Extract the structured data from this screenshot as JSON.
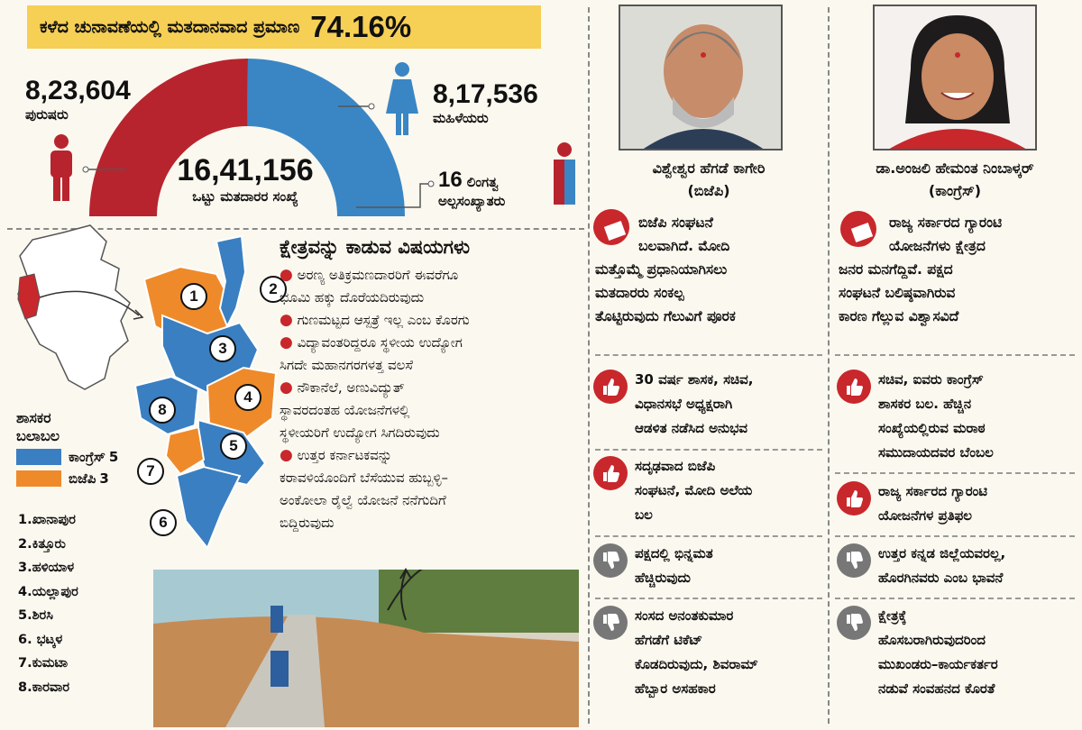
{
  "header": {
    "label": "ಕಳೆದ ಚುನಾವಣೆಯಲ್ಲಿ ಮತದಾನವಾದ ಪ್ರಮಾಣ",
    "percent": "74.16%"
  },
  "voters": {
    "male": {
      "value": "8,23,604",
      "label": "ಪುರುಷರು"
    },
    "female": {
      "value": "8,17,536",
      "label": "ಮಹಿಳೆಯರು"
    },
    "total": {
      "value": "16,41,156",
      "label": "ಒಟ್ಟು ಮತದಾರರ ಸಂಖ್ಯೆ"
    },
    "transgender": {
      "value": "16",
      "label_line1": "ಲಿಂಗತ್ವ",
      "label_line2": "ಅಲ್ಪಸಂಖ್ಯಾತರು"
    },
    "male_share": 0.5018
  },
  "colors": {
    "congress": "#3a7fc1",
    "bjp": "#ef8a2a",
    "male": "#b8242e",
    "female": "#3a86c5",
    "banner": "#f6cf55",
    "accent": "#c8272c"
  },
  "issues": {
    "title": "ಕ್ಷೇತ್ರವನ್ನು ಕಾಡುವ ವಿಷಯಗಳು",
    "items": [
      {
        "line1": "ಅರಣ್ಯ ಅತಿಕ್ರಮಣದಾರರಿಗೆ ಈವರೆಗೂ",
        "line2": "ಭೂಮಿ ಹಕ್ಕು ದೊರೆಯದಿರುವುದು"
      },
      {
        "line1": "ಗುಣಮಟ್ಟದ ಆಸ್ಪತ್ರೆ ಇಲ್ಲ ಎಂಬ ಕೊರಗು"
      },
      {
        "line1": "ವಿದ್ಯಾವಂತರಿದ್ದರೂ ಸ್ಥಳೀಯ ಉದ್ಯೋಗ",
        "line2": "ಸಿಗದೇ ಮಹಾನಗರಗಳತ್ತ ವಲಸೆ"
      },
      {
        "line1": "ನೌಕಾನೆಲೆ, ಅಣುವಿದ್ಯುತ್",
        "line2": "ಸ್ಥಾವರದಂತಹ ಯೋಜನೆಗಳಲ್ಲಿ",
        "line3": "ಸ್ಥಳೀಯರಿಗೆ ಉದ್ಯೋಗ ಸಿಗದಿರುವುದು"
      },
      {
        "line1": "ಉತ್ತರ ಕರ್ನಾಟಕವನ್ನು",
        "line2": "ಕರಾವಳಿಯೊಂದಿಗೆ ಬೆಸೆಯುವ ಹುಬ್ಬಳ್ಳಿ–",
        "line3": "ಅಂಕೋಲಾ ರೈಲ್ವೆ ಯೋಜನೆ ನನೆಗುದಿಗೆ",
        "line4": "ಬಿದ್ದಿರುವುದು"
      }
    ]
  },
  "legend": {
    "title1": "ಶಾಸಕರ",
    "title2": "ಬಲಾಬಲ",
    "congress": {
      "label": "ಕಾಂಗ್ರೆಸ್",
      "count": "5"
    },
    "bjp": {
      "label": "ಬಿಜೆಪಿ",
      "count": "3"
    }
  },
  "constituencies": [
    "1.ಖಾನಾಪುರ",
    "2.ಕಿತ್ತೂರು",
    "3.ಹಳಿಯಾಳ",
    "4.ಯಲ್ಲಾಪುರ",
    "5.ಶಿರಸಿ",
    "6. ಭಟ್ಕಳ",
    "7.ಕುಮಟಾ",
    "8.ಕಾರವಾರ"
  ],
  "map_numbers": [
    "1",
    "2",
    "3",
    "4",
    "5",
    "6",
    "7",
    "8"
  ],
  "candidate1": {
    "name": "ವಿಶ್ವೇಶ್ವರ ಹೆಗಡೆ ಕಾಗೇರಿ",
    "party": "(ಬಿಜೆಪಿ)",
    "quote": [
      "ಬಿಜೆಪಿ ಸಂಘಟನೆ",
      "ಬಲವಾಗಿದೆ. ಮೋದಿ",
      "ಮತ್ತೊಮ್ಮೆ ಪ್ರಧಾನಿಯಾಗಿಸಲು",
      "ಮತದಾರರು ಸಂಕಲ್ಪ",
      "ತೊಟ್ಟಿರುವುದು ಗೆಲುವಿಗೆ ಪೂರಕ"
    ],
    "points": [
      {
        "type": "pro",
        "lines": [
          "30 ವರ್ಷ ಶಾಸಕ, ಸಚಿವ,",
          "ವಿಧಾನಸಭೆ ಅಧ್ಯಕ್ಷರಾಗಿ",
          "ಆಡಳಿತ ನಡೆಸಿದ ಅನುಭವ"
        ]
      },
      {
        "type": "pro",
        "lines": [
          "ಸದೃಢವಾದ ಬಿಜೆಪಿ",
          "ಸಂಘಟನೆ, ಮೋದಿ ಅಲೆಯ",
          "ಬಲ"
        ]
      },
      {
        "type": "con",
        "lines": [
          "ಪಕ್ಷದಲ್ಲಿ ಭಿನ್ನಮತ",
          "ಹೆಚ್ಚಿರುವುದು"
        ]
      },
      {
        "type": "con",
        "lines": [
          "ಸಂಸದ ಅನಂತಕುಮಾರ",
          "ಹೆಗಡೆಗೆ ಟಿಕೆಟ್",
          "ಕೊಡದಿರುವುದು, ಶಿವರಾಮ್",
          "ಹೆಬ್ಬಾರ ಅಸಹಕಾರ"
        ]
      }
    ]
  },
  "candidate2": {
    "name": "ಡಾ.ಅಂಜಲಿ ಹೇಮಂತ ನಿಂಬಾಳ್ಕರ್",
    "party": "(ಕಾಂಗ್ರೆಸ್)",
    "quote": [
      "ರಾಜ್ಯ ಸರ್ಕಾರದ ಗ್ಯಾರಂಟಿ",
      "ಯೋಜನೆಗಳು ಕ್ಷೇತ್ರದ",
      "ಜನರ ಮನಗೆದ್ದಿವೆ. ಪಕ್ಷದ",
      "ಸಂಘಟನೆ ಬಲಿಷ್ಠವಾಗಿರುವ",
      "ಕಾರಣ ಗೆಲ್ಲುವ ವಿಶ್ವಾಸವಿದೆ"
    ],
    "points": [
      {
        "type": "pro",
        "lines": [
          "ಸಚಿವ, ಐವರು ಕಾಂಗ್ರೆಸ್",
          "ಶಾಸಕರ ಬಲ. ಹೆಚ್ಚಿನ",
          "ಸಂಖ್ಯೆಯಲ್ಲಿರುವ ಮರಾಠ",
          "ಸಮುದಾಯದವರ ಬೆಂಬಲ"
        ]
      },
      {
        "type": "pro",
        "lines": [
          "ರಾಜ್ಯ ಸರ್ಕಾರದ ಗ್ಯಾರಂಟಿ",
          "ಯೋಜನೆಗಳ ಪ್ರತಿಫಲ"
        ]
      },
      {
        "type": "con",
        "lines": [
          "ಉತ್ತರ ಕನ್ನಡ ಜಿಲ್ಲೆಯವರಲ್ಲ,",
          "ಹೊರಗಿನವರು ಎಂಬ ಭಾವನೆ"
        ]
      },
      {
        "type": "con",
        "lines": [
          "ಕ್ಷೇತ್ರಕ್ಕೆ",
          "ಹೊಸಬರಾಗಿರುವುದರಿಂದ",
          "ಮುಖಂಡರು–ಕಾರ್ಯಕರ್ತರ",
          "ನಡುವೆ ಸಂವಹನದ ಕೊರತೆ"
        ]
      }
    ]
  }
}
